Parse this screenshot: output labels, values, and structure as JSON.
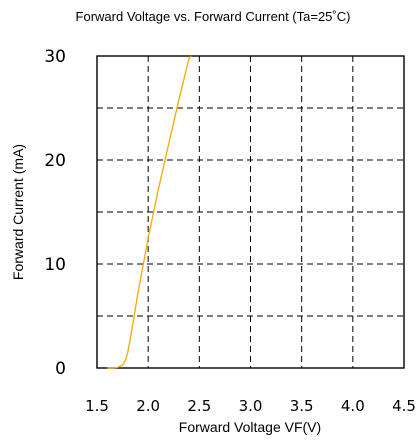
{
  "chart_data": {
    "type": "line",
    "title": "Forward Voltage vs. Forward Current (Ta=25˚C)",
    "xlabel": "Forward Voltage  VF(V)",
    "ylabel": "Forward Current (mA)",
    "xlim": [
      1.5,
      4.5
    ],
    "ylim": [
      0,
      30
    ],
    "x_ticks": [
      1.5,
      2.0,
      2.5,
      3.0,
      3.5,
      4.0,
      4.5
    ],
    "x_tick_labels": [
      "1.5",
      "2.0",
      "2.5",
      "3.0",
      "3.5",
      "4.0",
      "4.5"
    ],
    "y_ticks": [
      0,
      10,
      20,
      30
    ],
    "y_tick_labels": [
      "0",
      "10",
      "20",
      "30"
    ],
    "grid": true,
    "grid_style": "dashed",
    "series_color": "#F5A800",
    "series": [
      {
        "x": [
          1.6,
          1.65,
          1.7,
          1.75,
          1.78,
          1.8,
          1.82,
          1.85,
          1.9,
          2.0,
          2.1,
          2.2,
          2.3,
          2.4,
          2.42
        ],
        "y": [
          0,
          0,
          0.05,
          0.3,
          0.8,
          1.5,
          2.5,
          4.2,
          7.2,
          12.5,
          17.2,
          21.5,
          25.8,
          29.8,
          30
        ]
      }
    ]
  }
}
